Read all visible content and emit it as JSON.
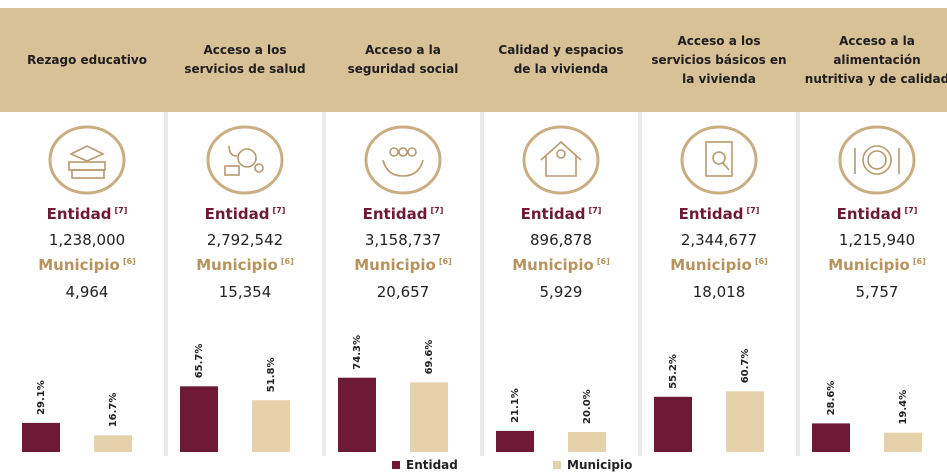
{
  "labels": {
    "entidad": "Entidad",
    "municipio": "Municipio",
    "ref_entidad": "[7]",
    "ref_municipio": "[6]"
  },
  "legend": [
    {
      "name": "Entidad",
      "color": "#6e1a37"
    },
    {
      "name": "Municipio",
      "color": "#e6d2aa"
    }
  ],
  "chart_data": [
    {
      "type": "bar",
      "title": "Rezago educativo",
      "entidad_total": "1,238,000",
      "municipio_total": "4,964",
      "values": [
        29.1,
        16.7
      ],
      "value_labels": [
        "29.1%",
        "16.7%"
      ],
      "ylim": [
        0,
        80
      ]
    },
    {
      "type": "bar",
      "title": "Acceso a los servicios de salud",
      "entidad_total": "2,792,542",
      "municipio_total": "15,354",
      "values": [
        65.7,
        51.8
      ],
      "value_labels": [
        "65.7%",
        "51.8%"
      ],
      "ylim": [
        0,
        80
      ]
    },
    {
      "type": "bar",
      "title": "Acceso a la seguridad social",
      "entidad_total": "3,158,737",
      "municipio_total": "20,657",
      "values": [
        74.3,
        69.6
      ],
      "value_labels": [
        "74.3%",
        "69.6%"
      ],
      "ylim": [
        0,
        80
      ]
    },
    {
      "type": "bar",
      "title": "Calidad y espacios de la vivienda",
      "entidad_total": "896,878",
      "municipio_total": "5,929",
      "values": [
        21.1,
        20.0
      ],
      "value_labels": [
        "21.1%",
        "20.0%"
      ],
      "ylim": [
        0,
        80
      ]
    },
    {
      "type": "bar",
      "title": "Acceso a los servicios básicos en la vivienda",
      "entidad_total": "2,344,677",
      "municipio_total": "18,018",
      "values": [
        55.2,
        60.7
      ],
      "value_labels": [
        "55.2%",
        "60.7%"
      ],
      "ylim": [
        0,
        80
      ]
    },
    {
      "type": "bar",
      "title": "Acceso a la alimentación nutritiva y de calidad",
      "entidad_total": "1,215,940",
      "municipio_total": "5,757",
      "values": [
        28.6,
        19.4
      ],
      "value_labels": [
        "28.6%",
        "19.4%"
      ],
      "ylim": [
        0,
        80
      ]
    }
  ]
}
